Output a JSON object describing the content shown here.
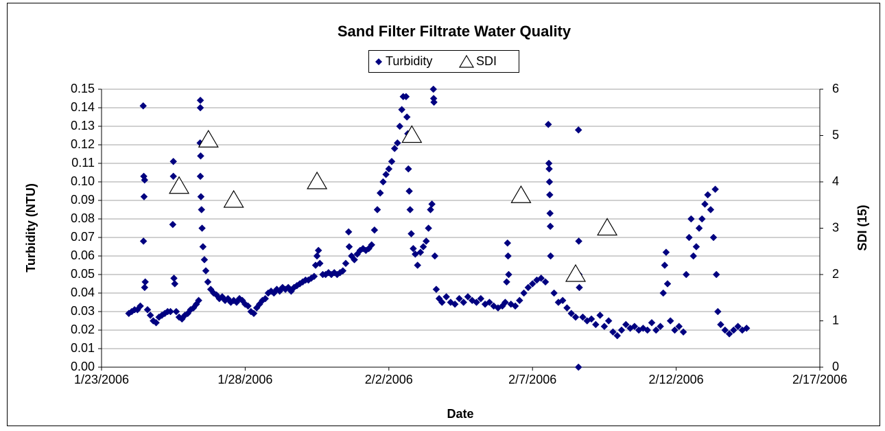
{
  "chart_data": {
    "type": "scatter",
    "title": "Sand Filter Filtrate Water Quality",
    "x_label": "Date",
    "y_label": "Turbidity (NTU)",
    "y2_label": "SDI (15)",
    "xlim": [
      38740,
      38765
    ],
    "xticks": [
      {
        "value": 38740,
        "label": "1/23/2006"
      },
      {
        "value": 38745,
        "label": "1/28/2006"
      },
      {
        "value": 38750,
        "label": "2/2/2006"
      },
      {
        "value": 38755,
        "label": "2/7/2006"
      },
      {
        "value": 38760,
        "label": "2/12/2006"
      },
      {
        "value": 38765,
        "label": "2/17/2006"
      }
    ],
    "ylim": [
      0,
      0.15
    ],
    "yticks": [
      {
        "value": 0,
        "label": "0.00"
      },
      0.01,
      0.02,
      0.03,
      0.04,
      0.05,
      0.06,
      0.07,
      0.08,
      0.09,
      {
        "value": 0.1,
        "label": "0.10"
      },
      0.11,
      0.12,
      0.13,
      0.14,
      0.15
    ],
    "y2lim": [
      0,
      6
    ],
    "y2ticks": [
      0,
      1,
      2,
      3,
      4,
      5,
      6
    ],
    "grid": true,
    "legend": "top",
    "series": [
      {
        "name": "Turbidity",
        "color": "#000080",
        "marker": "diamond",
        "x": [
          38740.95,
          38741.05,
          38741.15,
          38741.25,
          38741.35,
          38741.45,
          38741.47,
          38741.5,
          38741.48,
          38741.46,
          38741.52,
          38741.5,
          38741.6,
          38741.7,
          38741.8,
          38741.9,
          38742.0,
          38742.1,
          38742.2,
          38742.3,
          38742.4,
          38742.5,
          38742.5,
          38742.48,
          38742.52,
          38742.55,
          38742.6,
          38742.7,
          38742.8,
          38742.9,
          38743.0,
          38743.1,
          38743.2,
          38743.3,
          38743.38,
          38743.44,
          38743.44,
          38743.43,
          38743.45,
          38743.44,
          38743.46,
          38743.48,
          38743.5,
          38743.53,
          38743.58,
          38743.63,
          38743.7,
          38743.8,
          38743.9,
          38744.0,
          38744.1,
          38744.2,
          38744.3,
          38744.4,
          38744.5,
          38744.6,
          38744.7,
          38744.8,
          38744.9,
          38745.0,
          38745.1,
          38745.2,
          38745.3,
          38745.4,
          38745.5,
          38745.6,
          38745.7,
          38745.8,
          38745.9,
          38746.0,
          38746.1,
          38746.2,
          38746.3,
          38746.4,
          38746.5,
          38746.6,
          38746.7,
          38746.8,
          38746.9,
          38747.0,
          38747.1,
          38747.2,
          38747.3,
          38747.4,
          38747.45,
          38747.5,
          38747.55,
          38747.6,
          38747.7,
          38747.8,
          38747.9,
          38748.0,
          38748.1,
          38748.2,
          38748.3,
          38748.4,
          38748.5,
          38748.6,
          38748.62,
          38748.7,
          38748.8,
          38748.9,
          38749.0,
          38749.1,
          38749.2,
          38749.3,
          38749.4,
          38749.5,
          38749.6,
          38749.7,
          38749.8,
          38749.9,
          38750.0,
          38750.1,
          38750.2,
          38750.3,
          38750.38,
          38750.45,
          38750.5,
          38750.6,
          38750.63,
          38750.66,
          38750.68,
          38750.71,
          38750.74,
          38750.78,
          38750.85,
          38750.92,
          38751.0,
          38751.1,
          38751.2,
          38751.3,
          38751.38,
          38751.45,
          38751.5,
          38751.55,
          38751.56,
          38751.57,
          38751.6,
          38751.65,
          38751.75,
          38751.85,
          38752.0,
          38752.15,
          38752.3,
          38752.45,
          38752.6,
          38752.75,
          38752.9,
          38753.05,
          38753.2,
          38753.35,
          38753.5,
          38753.65,
          38753.8,
          38753.95,
          38754.05,
          38754.1,
          38754.13,
          38754.15,
          38754.17,
          38754.25,
          38754.4,
          38754.55,
          38754.7,
          38754.85,
          38755.0,
          38755.15,
          38755.3,
          38755.45,
          38755.55,
          38755.57,
          38755.58,
          38755.59,
          38755.6,
          38755.61,
          38755.62,
          38755.63,
          38755.75,
          38755.9,
          38756.05,
          38756.2,
          38756.35,
          38756.5,
          38756.6,
          38756.61,
          38756.62,
          38756.63,
          38756.6,
          38756.75,
          38756.9,
          38757.05,
          38757.2,
          38757.35,
          38757.5,
          38757.65,
          38757.8,
          38757.95,
          38758.1,
          38758.25,
          38758.4,
          38758.55,
          38758.7,
          38758.85,
          38759.0,
          38759.15,
          38759.3,
          38759.45,
          38759.55,
          38759.6,
          38759.65,
          38759.7,
          38759.8,
          38759.95,
          38760.1,
          38760.25,
          38760.35,
          38760.45,
          38760.52,
          38760.6,
          38760.7,
          38760.8,
          38760.9,
          38761.0,
          38761.1,
          38761.2,
          38761.3,
          38761.36,
          38761.4,
          38761.45,
          38761.55,
          38761.7,
          38761.85,
          38762.0,
          38762.15,
          38762.3,
          38762.45
        ],
        "values": [
          0.029,
          0.03,
          0.031,
          0.031,
          0.033,
          0.141,
          0.103,
          0.101,
          0.092,
          0.068,
          0.046,
          0.043,
          0.031,
          0.028,
          0.025,
          0.024,
          0.027,
          0.028,
          0.029,
          0.03,
          0.03,
          0.111,
          0.103,
          0.077,
          0.048,
          0.045,
          0.03,
          0.027,
          0.026,
          0.028,
          0.029,
          0.031,
          0.032,
          0.034,
          0.036,
          0.144,
          0.14,
          0.121,
          0.114,
          0.103,
          0.092,
          0.085,
          0.075,
          0.065,
          0.058,
          0.052,
          0.046,
          0.042,
          0.04,
          0.039,
          0.037,
          0.038,
          0.036,
          0.037,
          0.035,
          0.036,
          0.035,
          0.037,
          0.036,
          0.034,
          0.033,
          0.03,
          0.029,
          0.032,
          0.034,
          0.036,
          0.037,
          0.04,
          0.041,
          0.04,
          0.042,
          0.041,
          0.043,
          0.042,
          0.043,
          0.041,
          0.043,
          0.044,
          0.045,
          0.046,
          0.047,
          0.047,
          0.048,
          0.049,
          0.055,
          0.06,
          0.063,
          0.056,
          0.05,
          0.05,
          0.051,
          0.05,
          0.051,
          0.05,
          0.051,
          0.052,
          0.056,
          0.073,
          0.065,
          0.06,
          0.058,
          0.061,
          0.063,
          0.064,
          0.063,
          0.064,
          0.066,
          0.074,
          0.085,
          0.094,
          0.1,
          0.104,
          0.107,
          0.111,
          0.118,
          0.121,
          0.13,
          0.139,
          0.146,
          0.146,
          0.135,
          0.126,
          0.107,
          0.095,
          0.085,
          0.072,
          0.064,
          0.061,
          0.055,
          0.062,
          0.065,
          0.068,
          0.075,
          0.085,
          0.088,
          0.15,
          0.145,
          0.143,
          0.06,
          0.042,
          0.037,
          0.035,
          0.038,
          0.035,
          0.034,
          0.037,
          0.035,
          0.038,
          0.036,
          0.035,
          0.037,
          0.034,
          0.035,
          0.033,
          0.032,
          0.033,
          0.035,
          0.046,
          0.067,
          0.06,
          0.05,
          0.034,
          0.033,
          0.036,
          0.04,
          0.043,
          0.045,
          0.047,
          0.048,
          0.046,
          0.131,
          0.11,
          0.107,
          0.1,
          0.093,
          0.083,
          0.076,
          0.06,
          0.04,
          0.035,
          0.036,
          0.032,
          0.029,
          0.027,
          0.128,
          0.068,
          0.05,
          0.043,
          0,
          0.027,
          0.025,
          0.026,
          0.023,
          0.028,
          0.022,
          0.025,
          0.019,
          0.017,
          0.02,
          0.023,
          0.021,
          0.022,
          0.02,
          0.021,
          0.02,
          0.024,
          0.02,
          0.022,
          0.04,
          0.055,
          0.062,
          0.045,
          0.025,
          0.02,
          0.022,
          0.019,
          0.05,
          0.07,
          0.08,
          0.06,
          0.065,
          0.075,
          0.08,
          0.088,
          0.093,
          0.085,
          0.07,
          0.096,
          0.05,
          0.03,
          0.023,
          0.02,
          0.018,
          0.02,
          0.022,
          0.02,
          0.021
        ]
      },
      {
        "name": "SDI",
        "color": "#000000",
        "marker": "open-triangle",
        "axis": "y2",
        "x": [
          38742.7,
          38743.72,
          38744.6,
          38747.5,
          38750.8,
          38754.6,
          38756.5,
          38757.6
        ],
        "values": [
          3.9,
          4.9,
          3.6,
          4.0,
          5.0,
          3.7,
          2.0,
          3.0
        ]
      }
    ]
  }
}
